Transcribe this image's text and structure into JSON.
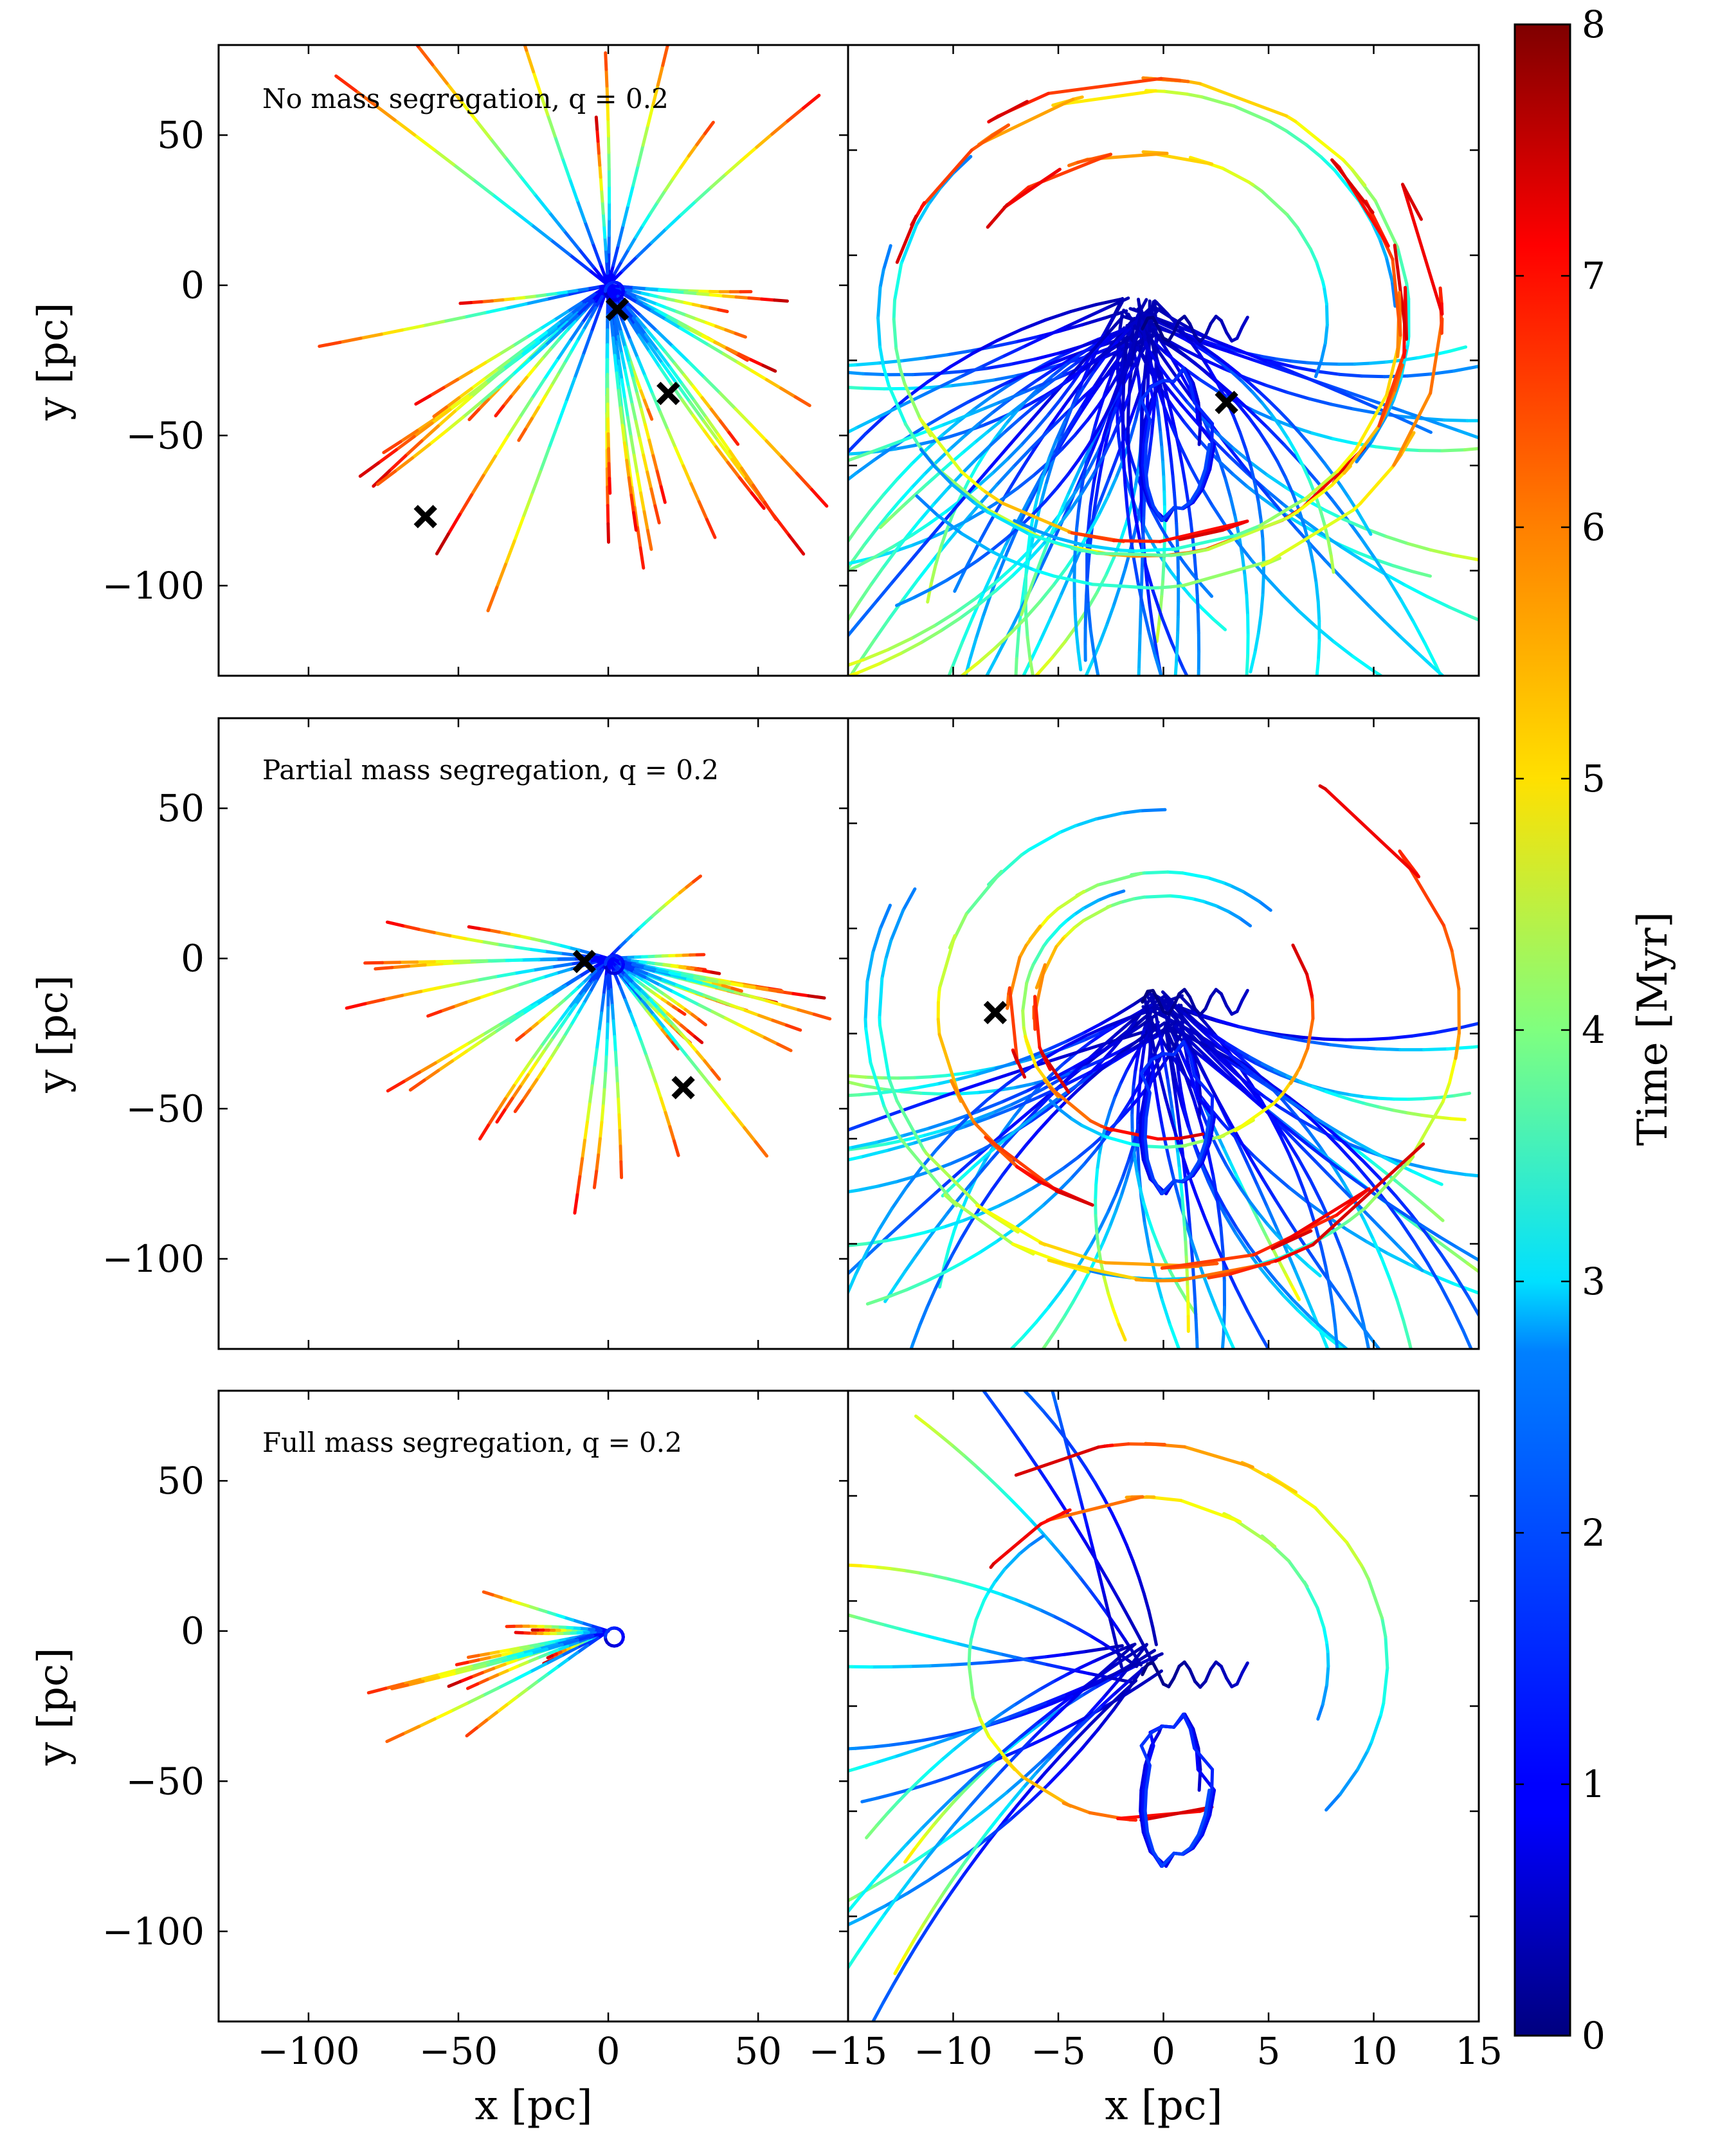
{
  "chart_data": {
    "type": "line",
    "description_panels": 6,
    "colorbar": {
      "label": "Time [Myr]",
      "range": [
        0,
        8
      ],
      "ticks": [
        "0",
        "1",
        "2",
        "3",
        "4",
        "5",
        "6",
        "7",
        "8"
      ],
      "colormap": "jet"
    },
    "left_axes": {
      "xlabel": "x [pc]",
      "ylabel": "y [pc]",
      "xlim": [
        -130,
        80
      ],
      "ylim": [
        -130,
        80
      ],
      "xticks": [
        "−100",
        "−50",
        "0",
        "50"
      ],
      "xtick_values": [
        -100,
        -50,
        0,
        50
      ],
      "yticks": [
        "50",
        "0",
        "−50",
        "−100"
      ],
      "ytick_values": [
        50,
        0,
        -50,
        -100
      ]
    },
    "right_axes": {
      "xlabel": "x [pc]",
      "xlim": [
        -15,
        15
      ],
      "xticks": [
        "−15",
        "−10",
        "−5",
        "0",
        "5",
        "10",
        "15"
      ],
      "xtick_values": [
        -15,
        -10,
        -5,
        0,
        5,
        10,
        15
      ],
      "ylim": [
        -15,
        15
      ]
    },
    "rows": [
      {
        "title": "No mass segregation, q = 0.2",
        "markers_left": [
          [
            3,
            -8
          ],
          [
            20,
            -36
          ],
          [
            -61,
            -77
          ]
        ],
        "markers_right": [
          [
            3,
            -2
          ]
        ]
      },
      {
        "title": "Partial mass segregation, q = 0.2",
        "markers_left": [
          [
            -8,
            -1
          ],
          [
            25,
            -43
          ]
        ],
        "markers_right": [
          [
            -8,
            1
          ]
        ]
      },
      {
        "title": "Full mass segregation, q = 0.2",
        "markers_left": [],
        "markers_right": []
      }
    ]
  }
}
